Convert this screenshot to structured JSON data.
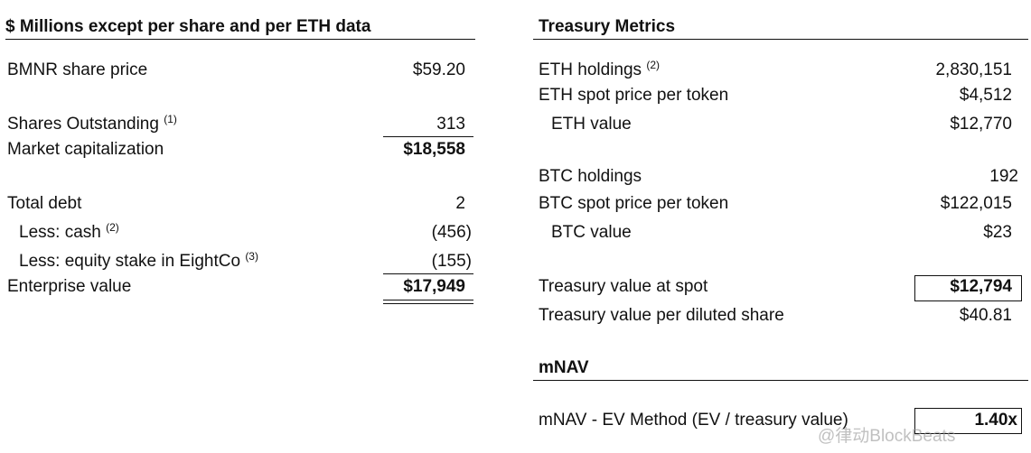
{
  "left_table": {
    "header": "$ Millions except per share and per ETH data",
    "rows": [
      {
        "label": "BMNR share price",
        "value": "$59.20"
      },
      {
        "label": "Shares Outstanding",
        "note": "(1)",
        "value": "313"
      },
      {
        "label": "Market capitalization",
        "value": "$18,558"
      },
      {
        "label": "Total debt",
        "value": "2"
      },
      {
        "label": "Less: cash",
        "note": "(2)",
        "value": "(456)"
      },
      {
        "label": "Less: equity stake in EightCo",
        "note": "(3)",
        "value": "(155)"
      },
      {
        "label": "Enterprise value",
        "value": "$17,949"
      }
    ]
  },
  "treasury_metrics": {
    "header": "Treasury Metrics",
    "rows": [
      {
        "label": "ETH holdings",
        "note": "(2)",
        "value": "2,830,151"
      },
      {
        "label": "ETH spot price per token",
        "value": "$4,512"
      },
      {
        "label": "ETH value",
        "value": "$12,770"
      },
      {
        "label": "BTC holdings",
        "value": "192"
      },
      {
        "label": "BTC spot price per token",
        "value": "$122,015"
      },
      {
        "label": "BTC value",
        "value": "$23"
      },
      {
        "label": "Treasury value at spot",
        "value": "$12,794"
      },
      {
        "label": "Treasury value per diluted share",
        "value": "$40.81"
      }
    ]
  },
  "mnav": {
    "header": "mNAV",
    "rows": [
      {
        "label": "mNAV - EV Method (EV / treasury value)",
        "value": "1.40x"
      }
    ]
  },
  "watermark": "@律动BlockBeats"
}
